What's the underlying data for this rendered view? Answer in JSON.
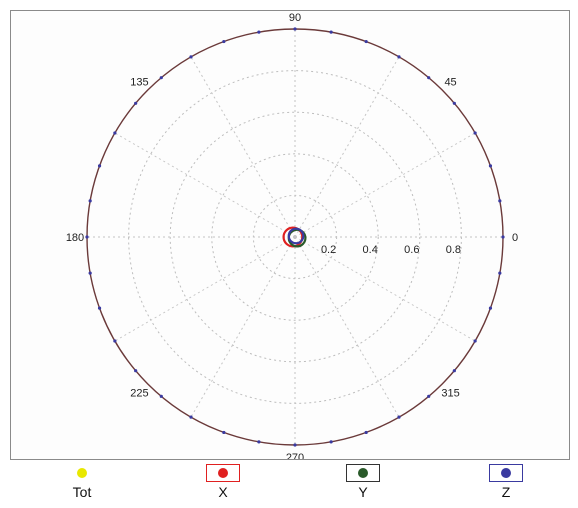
{
  "chart_data": {
    "type": "polar",
    "title": "",
    "r_ticks": [
      "0.2",
      "0.4",
      "0.6",
      "0.8"
    ],
    "r_max": 1.0,
    "angle_labels": [
      {
        "deg": 0,
        "text": "0"
      },
      {
        "deg": 45,
        "text": "45"
      },
      {
        "deg": 90,
        "text": "90"
      },
      {
        "deg": 135,
        "text": "135"
      },
      {
        "deg": 180,
        "text": "180"
      },
      {
        "deg": 225,
        "text": "225"
      },
      {
        "deg": 270,
        "text": "270"
      },
      {
        "deg": 315,
        "text": "315"
      }
    ],
    "grid": true,
    "series": [
      {
        "name": "Tot",
        "color": "#e8e800",
        "shape": "circle",
        "r": 1.0,
        "cx": 0,
        "cy": 0
      },
      {
        "name": "X",
        "color": "#e02020",
        "shape": "circle",
        "r": 0.045,
        "cx": -0.01,
        "cy": 0.0
      },
      {
        "name": "Y",
        "color": "#2a5a2a",
        "shape": "circle",
        "r": 0.04,
        "cx": 0.01,
        "cy": -0.005
      },
      {
        "name": "Z",
        "color": "#3a3aa0",
        "shape": "circle",
        "r": 0.035,
        "cx": 0.005,
        "cy": 0.005
      }
    ]
  },
  "legend": {
    "items": [
      {
        "label": "Tot",
        "color": "#e8e800",
        "box": false
      },
      {
        "label": "X",
        "color": "#e02020",
        "box": true,
        "box_color": "#e02020"
      },
      {
        "label": "Y",
        "color": "#2a5a2a",
        "box": true,
        "box_color": "#333333"
      },
      {
        "label": "Z",
        "color": "#3a3aa0",
        "box": true,
        "box_color": "#3a3aa0"
      }
    ]
  }
}
